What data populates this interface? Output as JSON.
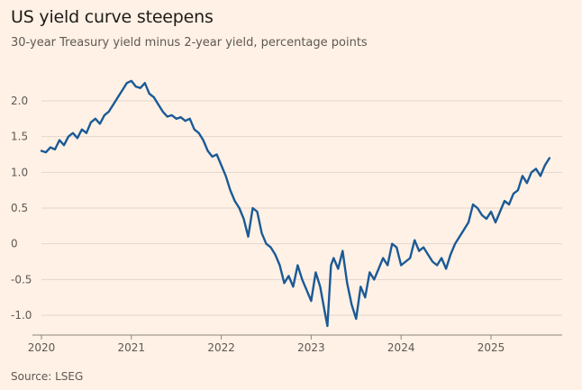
{
  "header": {
    "title": "US yield curve steepens",
    "subtitle": "30-year Treasury yield minus 2-year yield, percentage points"
  },
  "footer": {
    "source": "Source: LSEG"
  },
  "colors": {
    "background": "#fff1e5",
    "line": "#1a5a96",
    "grid": "#e2d6cc",
    "text": "#5f5854",
    "title": "#1f1b18"
  },
  "chart_data": {
    "type": "line",
    "title": "US yield curve steepens",
    "subtitle": "30-year Treasury yield minus 2-year yield, percentage points",
    "xlabel": "",
    "ylabel": "",
    "xlim": [
      2020.0,
      2025.75
    ],
    "ylim": [
      -1.25,
      2.4
    ],
    "grid": true,
    "legend": "none",
    "x_ticks": [
      {
        "value": 2020,
        "label": "2020"
      },
      {
        "value": 2021,
        "label": "2021"
      },
      {
        "value": 2022,
        "label": "2022"
      },
      {
        "value": 2023,
        "label": "2023"
      },
      {
        "value": 2024,
        "label": "2024"
      },
      {
        "value": 2025,
        "label": "2025"
      }
    ],
    "y_ticks": [
      {
        "value": 2.0,
        "label": "2.0"
      },
      {
        "value": 1.5,
        "label": "1.5"
      },
      {
        "value": 1.0,
        "label": "1.0"
      },
      {
        "value": 0.5,
        "label": "0.5"
      },
      {
        "value": 0.0,
        "label": "0"
      },
      {
        "value": -0.5,
        "label": "-0.5"
      },
      {
        "value": -1.0,
        "label": "-1.0"
      }
    ],
    "series": [
      {
        "x": [
          2020.0,
          2020.05,
          2020.1,
          2020.15,
          2020.2,
          2020.25,
          2020.3,
          2020.35,
          2020.4,
          2020.45,
          2020.5,
          2020.55,
          2020.6,
          2020.65,
          2020.7,
          2020.75,
          2020.8,
          2020.85,
          2020.9,
          2020.95,
          2021.0,
          2021.05,
          2021.1,
          2021.15,
          2021.2,
          2021.25,
          2021.3,
          2021.35,
          2021.4,
          2021.45,
          2021.5,
          2021.55,
          2021.6,
          2021.65,
          2021.7,
          2021.75,
          2021.8,
          2021.85,
          2021.9,
          2021.95,
          2022.0,
          2022.05,
          2022.1,
          2022.15,
          2022.2,
          2022.25,
          2022.3,
          2022.35,
          2022.4,
          2022.45,
          2022.5,
          2022.55,
          2022.6,
          2022.65,
          2022.7,
          2022.75,
          2022.8,
          2022.85,
          2022.9,
          2022.95,
          2023.0,
          2023.05,
          2023.1,
          2023.15,
          2023.18,
          2023.22,
          2023.25,
          2023.3,
          2023.35,
          2023.4,
          2023.45,
          2023.5,
          2023.55,
          2023.6,
          2023.65,
          2023.7,
          2023.75,
          2023.8,
          2023.85,
          2023.9,
          2023.95,
          2024.0,
          2024.05,
          2024.1,
          2024.15,
          2024.2,
          2024.25,
          2024.3,
          2024.35,
          2024.4,
          2024.45,
          2024.5,
          2024.55,
          2024.6,
          2024.65,
          2024.7,
          2024.75,
          2024.8,
          2024.85,
          2024.9,
          2024.95,
          2025.0,
          2025.05,
          2025.1,
          2025.15,
          2025.2,
          2025.25,
          2025.3,
          2025.35,
          2025.4,
          2025.45,
          2025.5,
          2025.55,
          2025.6,
          2025.65
        ],
        "values": [
          1.3,
          1.28,
          1.35,
          1.32,
          1.45,
          1.38,
          1.5,
          1.55,
          1.48,
          1.6,
          1.55,
          1.7,
          1.75,
          1.68,
          1.8,
          1.85,
          1.95,
          2.05,
          2.15,
          2.25,
          2.28,
          2.2,
          2.18,
          2.25,
          2.1,
          2.05,
          1.95,
          1.85,
          1.78,
          1.8,
          1.75,
          1.77,
          1.72,
          1.75,
          1.6,
          1.55,
          1.45,
          1.3,
          1.22,
          1.25,
          1.1,
          0.95,
          0.75,
          0.6,
          0.5,
          0.35,
          0.1,
          0.5,
          0.45,
          0.15,
          0.0,
          -0.05,
          -0.15,
          -0.3,
          -0.55,
          -0.45,
          -0.6,
          -0.3,
          -0.5,
          -0.65,
          -0.8,
          -0.4,
          -0.6,
          -0.95,
          -1.15,
          -0.3,
          -0.2,
          -0.35,
          -0.1,
          -0.55,
          -0.85,
          -1.05,
          -0.6,
          -0.75,
          -0.4,
          -0.5,
          -0.35,
          -0.2,
          -0.3,
          0.0,
          -0.05,
          -0.3,
          -0.25,
          -0.2,
          0.05,
          -0.1,
          -0.05,
          -0.15,
          -0.25,
          -0.3,
          -0.2,
          -0.35,
          -0.15,
          0.0,
          0.1,
          0.2,
          0.3,
          0.55,
          0.5,
          0.4,
          0.35,
          0.45,
          0.3,
          0.45,
          0.6,
          0.55,
          0.7,
          0.75,
          0.95,
          0.85,
          1.0,
          1.05,
          0.95,
          1.1,
          1.2
        ]
      }
    ]
  }
}
